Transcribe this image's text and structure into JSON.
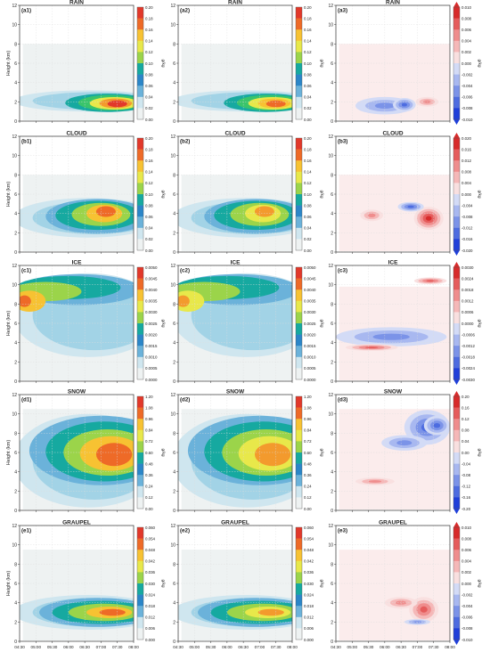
{
  "chart_data": {
    "type": "heatmap",
    "y_axis_label": "Height (km)",
    "y_ticks": [
      "0",
      "2",
      "4",
      "6",
      "8",
      "10",
      "12"
    ],
    "x_ticks": [
      "04:30",
      "05:00",
      "05:30",
      "06:00",
      "06:30",
      "07:00",
      "07:30",
      "08:00"
    ],
    "colorbar_unit": "g/kg",
    "palette_sequential": [
      "#eef2f2",
      "#cfe6ef",
      "#a2d3e6",
      "#6bb2da",
      "#2b86c8",
      "#16a9a0",
      "#39c46b",
      "#9bd44a",
      "#e8e84a",
      "#f7c232",
      "#f39a2d",
      "#ee6a27",
      "#e2382a"
    ],
    "palette_diverging": [
      "#1f3fd9",
      "#4d6ce0",
      "#7b93e8",
      "#a8b8f0",
      "#d3dbf6",
      "#f4f5fb",
      "#f9e0e0",
      "#f5b8b8",
      "#ef8d8d",
      "#e55c5c",
      "#d72b2b"
    ],
    "rows": [
      {
        "variable": "RAIN",
        "panels": [
          {
            "label": "(a1)",
            "title": "RAIN"
          },
          {
            "label": "(a2)",
            "title": "RAIN"
          },
          {
            "label": "(a3)",
            "title": "RAIN"
          }
        ],
        "cbar_seq": [
          "0.20",
          "0.18",
          "0.16",
          "0.14",
          "0.12",
          "0.10",
          "0.08",
          "0.06",
          "0.04",
          "0.02",
          "0.00"
        ],
        "cbar_seq2": [
          "0.20",
          "0.18",
          "0.16",
          "0.14",
          "0.12",
          "0.10",
          "0.08",
          "0.06",
          "0.04",
          "0.02",
          "0.00"
        ],
        "cbar_diff": [
          "0.010",
          "0.008",
          "0.006",
          "0.004",
          "0.002",
          "0.000",
          "-0.002",
          "-0.004",
          "-0.006",
          "-0.008",
          "-0.010"
        ]
      },
      {
        "variable": "CLOUD",
        "panels": [
          {
            "label": "(b1)",
            "title": "CLOUD"
          },
          {
            "label": "(b2)",
            "title": "CLOUD"
          },
          {
            "label": "(b3)",
            "title": "CLOUD"
          }
        ],
        "cbar_seq": [
          "0.20",
          "0.18",
          "0.16",
          "0.14",
          "0.12",
          "0.10",
          "0.08",
          "0.06",
          "0.04",
          "0.02",
          "0.00"
        ],
        "cbar_seq2": [
          "0.20",
          "0.18",
          "0.16",
          "0.14",
          "0.12",
          "0.10",
          "0.08",
          "0.06",
          "0.04",
          "0.02",
          "0.00"
        ],
        "cbar_diff": [
          "0.020",
          "0.016",
          "0.012",
          "0.008",
          "0.004",
          "0.000",
          "-0.004",
          "-0.008",
          "-0.012",
          "-0.016",
          "-0.020"
        ]
      },
      {
        "variable": "ICE",
        "panels": [
          {
            "label": "(c1)",
            "title": "ICE"
          },
          {
            "label": "(c2)",
            "title": "ICE"
          },
          {
            "label": "(c3)",
            "title": "ICE"
          }
        ],
        "cbar_seq": [
          "0.0050",
          "0.0045",
          "0.0040",
          "0.0035",
          "0.0030",
          "0.0025",
          "0.0020",
          "0.0015",
          "0.0010",
          "0.0005",
          "0.0000"
        ],
        "cbar_seq2": [
          "0.0050",
          "0.0045",
          "0.0040",
          "0.0035",
          "0.0030",
          "0.0025",
          "0.0020",
          "0.0015",
          "0.0010",
          "0.0005",
          "0.0000"
        ],
        "cbar_diff": [
          "0.0030",
          "0.0024",
          "0.0018",
          "0.0012",
          "0.0006",
          "0.0000",
          "-0.0006",
          "-0.0012",
          "-0.0018",
          "-0.0024",
          "-0.0030"
        ]
      },
      {
        "variable": "SNOW",
        "panels": [
          {
            "label": "(d1)",
            "title": "SNOW"
          },
          {
            "label": "(d2)",
            "title": "SNOW"
          },
          {
            "label": "(d3)",
            "title": "SNOW"
          }
        ],
        "cbar_seq": [
          "1.20",
          "1.08",
          "0.96",
          "0.84",
          "0.72",
          "0.60",
          "0.48",
          "0.36",
          "0.24",
          "0.12",
          "0.00"
        ],
        "cbar_seq2": [
          "1.20",
          "1.08",
          "0.96",
          "0.84",
          "0.72",
          "0.60",
          "0.48",
          "0.36",
          "0.24",
          "0.12",
          "0.00"
        ],
        "cbar_diff": [
          "0.20",
          "0.16",
          "0.12",
          "0.08",
          "0.04",
          "0.00",
          "-0.04",
          "-0.08",
          "-0.12",
          "-0.16",
          "-0.20"
        ]
      },
      {
        "variable": "GRAUPEL",
        "panels": [
          {
            "label": "(e1)",
            "title": "GRAUPEL"
          },
          {
            "label": "(e2)",
            "title": "GRAUPEL"
          },
          {
            "label": "(e3)",
            "title": "GRAUPEL"
          }
        ],
        "cbar_seq": [
          "0.060",
          "0.054",
          "0.048",
          "0.042",
          "0.036",
          "0.030",
          "0.024",
          "0.018",
          "0.012",
          "0.006",
          "0.000"
        ],
        "cbar_seq2": [
          "0.060",
          "0.054",
          "0.048",
          "0.042",
          "0.036",
          "0.030",
          "0.024",
          "0.018",
          "0.012",
          "0.006",
          "0.000"
        ],
        "cbar_diff": [
          "0.010",
          "0.008",
          "0.006",
          "0.004",
          "0.002",
          "0.000",
          "-0.002",
          "-0.004",
          "-0.006",
          "-0.008",
          "-0.010"
        ]
      }
    ]
  }
}
